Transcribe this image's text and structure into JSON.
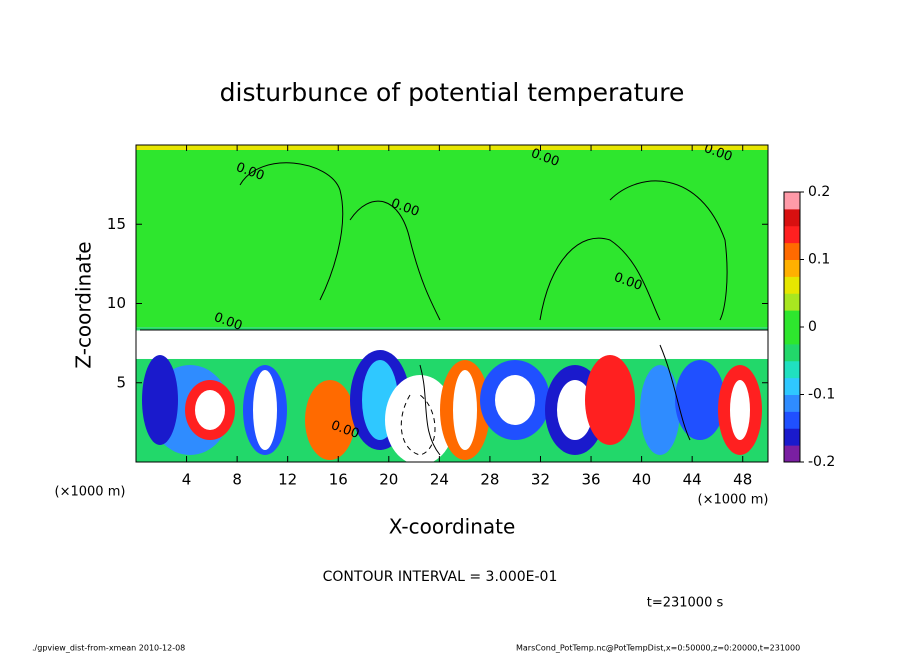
{
  "chart_data": {
    "type": "contour",
    "title": "disturbunce of potential temperature",
    "x_label": "X-coordinate",
    "y_label": "Z-coordinate",
    "x_unit": "(×1000 m)",
    "y_unit": "(×1000 m)",
    "xlim": [
      0,
      50
    ],
    "xticks": [
      4,
      8,
      12,
      16,
      20,
      24,
      28,
      32,
      36,
      40,
      44,
      48
    ],
    "ylim": [
      0,
      20
    ],
    "yticks": [
      5,
      10,
      15
    ],
    "colorbar": {
      "lim": [
        -0.2,
        0.2
      ],
      "ticks": [
        -0.2,
        -0.1,
        0,
        0.1,
        0.2
      ],
      "colors": [
        "#7a1fa2",
        "#1a1acc",
        "#2050ff",
        "#2f8cff",
        "#2fc8ff",
        "#20e0c0",
        "#22d86a",
        "#2ee62e",
        "#2ee62e",
        "#a8e620",
        "#e6e600",
        "#ffb000",
        "#ff6a00",
        "#ff2020",
        "#d81010",
        "#ff9aa8"
      ]
    },
    "contour_labels": [
      "0.00",
      "0.00",
      "0.00",
      "0.00",
      "0.00",
      "0.00",
      "0.00"
    ],
    "contour_interval": "CONTOUR INTERVAL = 3.000E-01",
    "time_label": "t=231000 s",
    "footer_left": "./gpview_dist-from-xmean   2010-12-08",
    "footer_right": "MarsCond_PotTemp.nc@PotTempDist,x=0:50000,z=0:20000,t=231000"
  }
}
